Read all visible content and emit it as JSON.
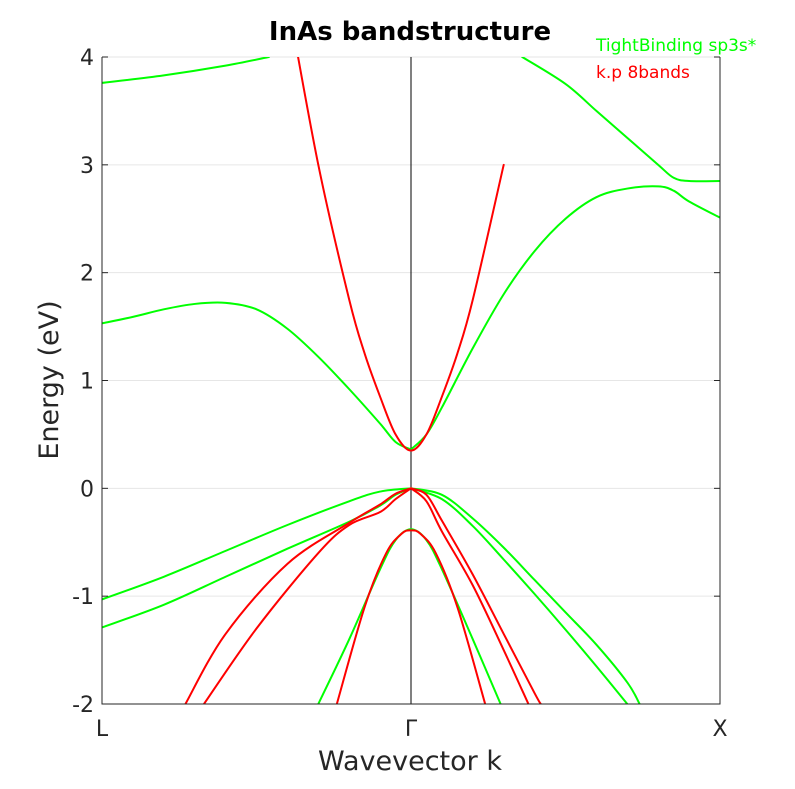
{
  "chart_data": {
    "type": "line",
    "title": "InAs bandstructure",
    "xlabel": "Wavevector k",
    "ylabel": "Energy (eV)",
    "ylim": [
      -2,
      4
    ],
    "xlim": [
      -1,
      1
    ],
    "yticks": [
      -2,
      -1,
      0,
      1,
      2,
      3,
      4
    ],
    "ytick_labels": [
      "-2",
      "-1",
      "0",
      "1",
      "2",
      "3",
      "4"
    ],
    "xticks": [
      -1,
      0,
      1
    ],
    "xtick_labels": [
      "L",
      "Γ",
      "X"
    ],
    "vertical_line_at": 0,
    "grid": "horizontal",
    "legend_position": "top-right-outside",
    "legend": [
      {
        "label": "TightBinding sp3s*",
        "color": "#00ff00"
      },
      {
        "label": "k.p 8bands",
        "color": "#ff0000"
      }
    ],
    "series": [
      {
        "group": "TightBinding sp3s*",
        "color": "#00ff00",
        "x": [
          -1,
          -0.8,
          -0.6,
          -0.46
        ],
        "y": [
          3.76,
          3.83,
          3.92,
          4.0
        ]
      },
      {
        "group": "TightBinding sp3s*",
        "color": "#00ff00",
        "x": [
          -1,
          -0.9,
          -0.8,
          -0.7,
          -0.6,
          -0.5,
          -0.4,
          -0.3,
          -0.2,
          -0.1,
          -0.05,
          0
        ],
        "y": [
          1.53,
          1.59,
          1.66,
          1.71,
          1.72,
          1.66,
          1.48,
          1.22,
          0.92,
          0.6,
          0.43,
          0.36
        ]
      },
      {
        "group": "TightBinding sp3s*",
        "color": "#00ff00",
        "x": [
          0,
          0.05,
          0.1,
          0.2,
          0.3,
          0.4,
          0.5,
          0.6,
          0.7,
          0.8,
          0.85,
          0.9,
          1.0
        ],
        "y": [
          0.36,
          0.5,
          0.75,
          1.3,
          1.8,
          2.2,
          2.5,
          2.7,
          2.78,
          2.8,
          2.76,
          2.66,
          2.51
        ]
      },
      {
        "group": "TightBinding sp3s*",
        "color": "#00ff00",
        "x": [
          0.36,
          0.5,
          0.6,
          0.7,
          0.8,
          0.85,
          0.9,
          1.0
        ],
        "y": [
          4.0,
          3.75,
          3.5,
          3.25,
          3.0,
          2.88,
          2.85,
          2.85
        ]
      },
      {
        "group": "TightBinding sp3s*",
        "color": "#00ff00",
        "x": [
          -1,
          -0.8,
          -0.6,
          -0.4,
          -0.2,
          -0.1,
          0
        ],
        "y": [
          -1.03,
          -0.82,
          -0.58,
          -0.34,
          -0.12,
          -0.03,
          0.0
        ]
      },
      {
        "group": "TightBinding sp3s*",
        "color": "#00ff00",
        "x": [
          -1,
          -0.8,
          -0.6,
          -0.4,
          -0.2,
          -0.1,
          -0.05,
          0
        ],
        "y": [
          -1.29,
          -1.08,
          -0.82,
          -0.56,
          -0.31,
          -0.16,
          -0.06,
          0.0
        ]
      },
      {
        "group": "TightBinding sp3s*",
        "color": "#00ff00",
        "x": [
          0,
          0.1,
          0.2,
          0.3,
          0.4,
          0.5,
          0.6,
          0.7,
          0.74
        ],
        "y": [
          0.0,
          -0.06,
          -0.28,
          -0.55,
          -0.85,
          -1.15,
          -1.45,
          -1.8,
          -2.0
        ]
      },
      {
        "group": "TightBinding sp3s*",
        "color": "#00ff00",
        "x": [
          0,
          0.1,
          0.2,
          0.3,
          0.4,
          0.5,
          0.6,
          0.7
        ],
        "y": [
          0.0,
          -0.1,
          -0.35,
          -0.66,
          -0.98,
          -1.31,
          -1.65,
          -2.0
        ]
      },
      {
        "group": "TightBinding sp3s*",
        "color": "#00ff00",
        "x": [
          -0.3,
          -0.2,
          -0.1,
          -0.05,
          0,
          0.05,
          0.1,
          0.2,
          0.29
        ],
        "y": [
          -2.0,
          -1.4,
          -0.75,
          -0.48,
          -0.38,
          -0.48,
          -0.75,
          -1.4,
          -2.0
        ]
      },
      {
        "group": "k.p 8bands",
        "color": "#ff0000",
        "x": [
          -0.4,
          -0.3,
          -0.2,
          -0.15,
          -0.1,
          -0.05,
          0,
          0.05,
          0.1,
          0.15,
          0.2,
          0.3
        ],
        "y": [
          4.55,
          3.0,
          1.75,
          1.25,
          0.85,
          0.5,
          0.35,
          0.5,
          0.85,
          1.25,
          1.75,
          3.0
        ]
      },
      {
        "group": "k.p 8bands",
        "color": "#ff0000",
        "x": [
          -0.73,
          -0.6,
          -0.4,
          -0.2,
          -0.1,
          -0.05,
          0
        ],
        "y": [
          -2.0,
          -1.35,
          -0.7,
          -0.32,
          -0.15,
          -0.05,
          0.0
        ]
      },
      {
        "group": "k.p 8bands",
        "color": "#ff0000",
        "x": [
          -0.67,
          -0.5,
          -0.3,
          -0.2,
          -0.1,
          -0.05,
          0
        ],
        "y": [
          -2.0,
          -1.3,
          -0.6,
          -0.34,
          -0.22,
          -0.1,
          0.0
        ]
      },
      {
        "group": "k.p 8bands",
        "color": "#ff0000",
        "x": [
          0,
          0.05,
          0.1,
          0.2,
          0.3,
          0.4,
          0.42
        ],
        "y": [
          0.0,
          -0.06,
          -0.3,
          -0.8,
          -1.35,
          -1.9,
          -2.0
        ]
      },
      {
        "group": "k.p 8bands",
        "color": "#ff0000",
        "x": [
          0,
          0.05,
          0.1,
          0.2,
          0.3,
          0.38
        ],
        "y": [
          0.0,
          -0.12,
          -0.4,
          -0.9,
          -1.5,
          -2.0
        ]
      },
      {
        "group": "k.p 8bands",
        "color": "#ff0000",
        "x": [
          -0.24,
          -0.15,
          -0.08,
          -0.03,
          0,
          0.03,
          0.08,
          0.15,
          0.24
        ],
        "y": [
          -2.0,
          -1.1,
          -0.6,
          -0.42,
          -0.39,
          -0.42,
          -0.6,
          -1.1,
          -2.0
        ]
      }
    ]
  }
}
